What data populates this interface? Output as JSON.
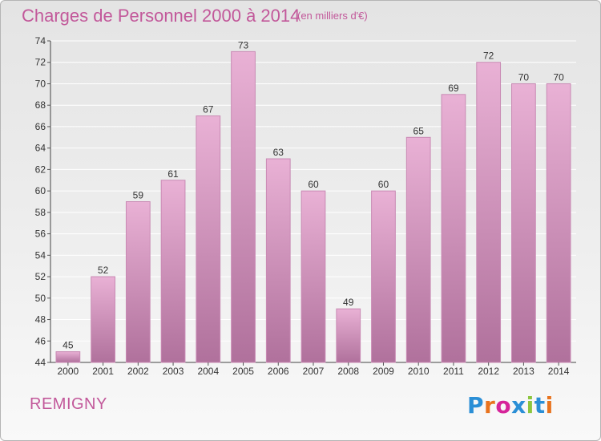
{
  "header": {
    "title": "Charges de Personnel 2000 à 2014",
    "subtitle": "(en milliers d'€)"
  },
  "footer": {
    "commune": "REMIGNY",
    "logo_text": "Proxiti",
    "logo_letters": [
      {
        "ch": "P",
        "color": "#2b8fd6"
      },
      {
        "ch": "r",
        "color": "#e8731e"
      },
      {
        "ch": "o",
        "color": "#d6249a"
      },
      {
        "ch": "x",
        "color": "#2b8fd6"
      },
      {
        "ch": "i",
        "color": "#8cc63f"
      },
      {
        "ch": "t",
        "color": "#2b8fd6"
      },
      {
        "ch": "i",
        "color": "#e8731e"
      }
    ]
  },
  "colors": {
    "title": "#c2589a",
    "bar_top": "#e9b1d5",
    "bar_bottom": "#b0719c",
    "bar_stroke": "#c98ab4"
  },
  "chart_data": {
    "type": "bar",
    "categories": [
      "2000",
      "2001",
      "2002",
      "2003",
      "2004",
      "2005",
      "2006",
      "2007",
      "2008",
      "2009",
      "2010",
      "2011",
      "2012",
      "2013",
      "2014"
    ],
    "values": [
      45,
      52,
      59,
      61,
      67,
      73,
      63,
      60,
      49,
      60,
      65,
      69,
      72,
      70,
      70
    ],
    "ylim": [
      44,
      74
    ],
    "yticks": [
      44,
      46,
      48,
      50,
      52,
      54,
      56,
      58,
      60,
      62,
      64,
      66,
      68,
      70,
      72,
      74
    ],
    "grid": true,
    "data_labels": true
  }
}
